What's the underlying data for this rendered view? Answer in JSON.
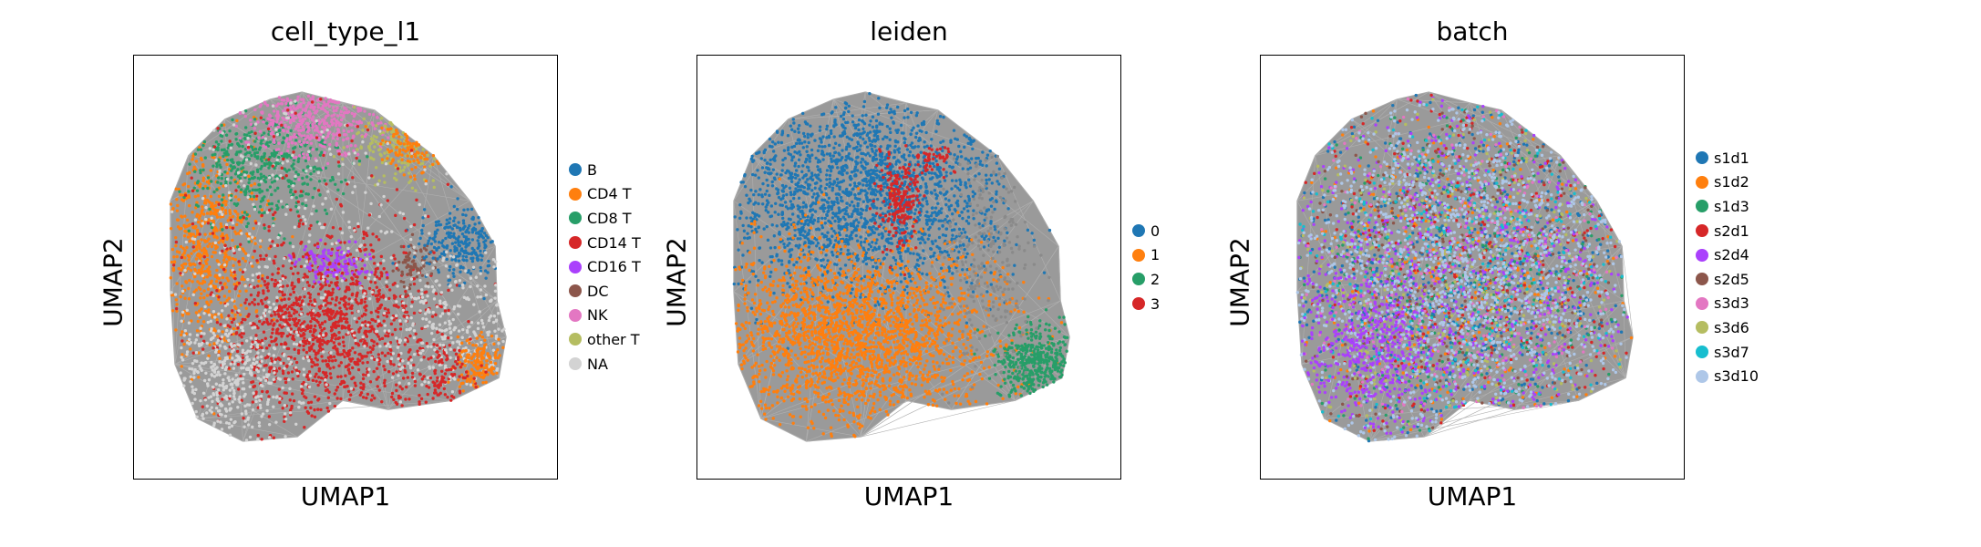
{
  "chart_data": [
    {
      "type": "scatter",
      "title": "cell_type_l1",
      "xlabel": "UMAP1",
      "ylabel": "UMAP2",
      "grid": false,
      "legend_position": "right",
      "legend": [
        {
          "label": "B",
          "color": "#1f77b4"
        },
        {
          "label": "CD4 T",
          "color": "#ff7f0e"
        },
        {
          "label": "CD8 T",
          "color": "#279e68"
        },
        {
          "label": "CD14 T",
          "color": "#d62728"
        },
        {
          "label": "CD16 T",
          "color": "#aa40fc"
        },
        {
          "label": "DC",
          "color": "#8c564b"
        },
        {
          "label": "NK",
          "color": "#e377c2"
        },
        {
          "label": "other T",
          "color": "#b5bd61"
        },
        {
          "label": "NA",
          "color": "#d3d3d3"
        }
      ]
    },
    {
      "type": "scatter",
      "title": "leiden",
      "xlabel": "UMAP1",
      "ylabel": "UMAP2",
      "grid": false,
      "legend_position": "right",
      "legend": [
        {
          "label": "0",
          "color": "#1f77b4"
        },
        {
          "label": "1",
          "color": "#ff7f0e"
        },
        {
          "label": "2",
          "color": "#279e68"
        },
        {
          "label": "3",
          "color": "#d62728"
        }
      ]
    },
    {
      "type": "scatter",
      "title": "batch",
      "xlabel": "UMAP1",
      "ylabel": "UMAP2",
      "grid": false,
      "legend_position": "right",
      "legend": [
        {
          "label": "s1d1",
          "color": "#1f77b4"
        },
        {
          "label": "s1d2",
          "color": "#ff7f0e"
        },
        {
          "label": "s1d3",
          "color": "#279e68"
        },
        {
          "label": "s2d1",
          "color": "#d62728"
        },
        {
          "label": "s2d4",
          "color": "#aa40fc"
        },
        {
          "label": "s2d5",
          "color": "#8c564b"
        },
        {
          "label": "s3d3",
          "color": "#e377c2"
        },
        {
          "label": "s3d6",
          "color": "#b5bd61"
        },
        {
          "label": "s3d7",
          "color": "#17becf"
        },
        {
          "label": "s3d10",
          "color": "#aec7e8"
        }
      ]
    }
  ]
}
